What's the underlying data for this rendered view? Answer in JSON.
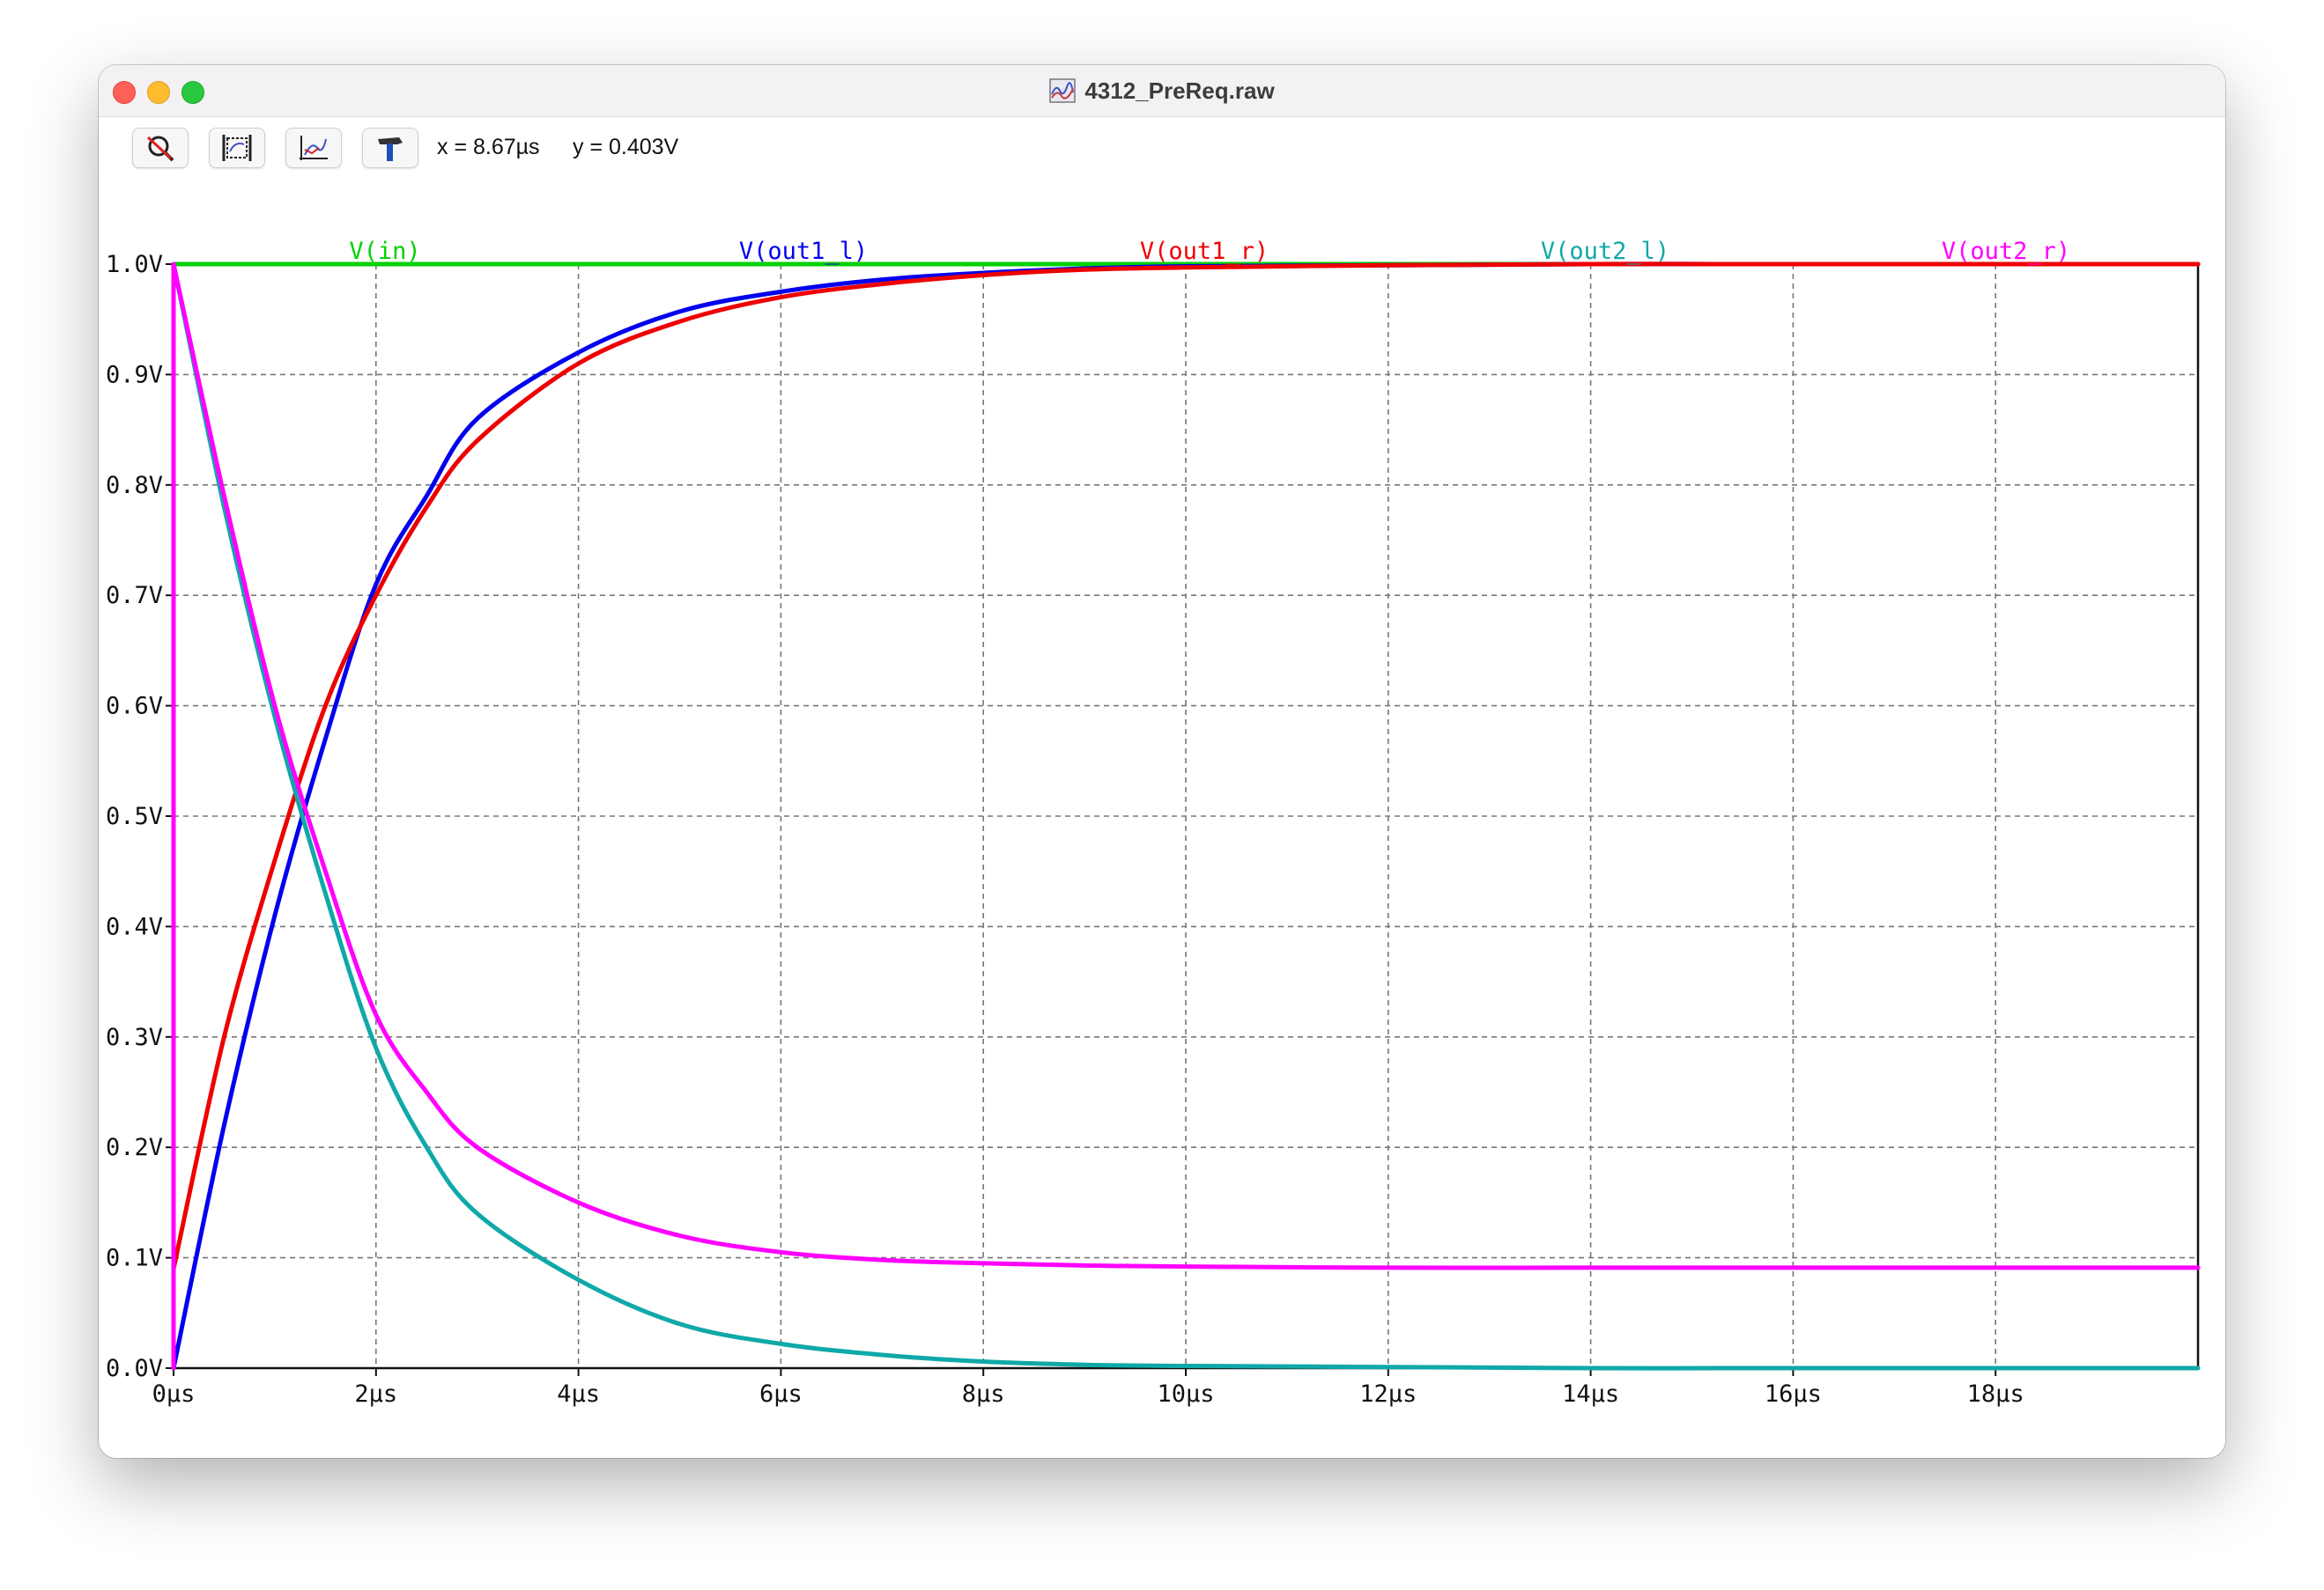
{
  "window": {
    "title": "4312_PreReq.raw",
    "title_icon": "waveform-document-icon"
  },
  "toolbar": {
    "buttons": [
      {
        "name": "autorange-icon"
      },
      {
        "name": "zoom-extents-icon"
      },
      {
        "name": "pan-icon"
      },
      {
        "name": "hammer-icon"
      }
    ],
    "cursor_x": "x = 8.67µs",
    "cursor_y": "y = 0.403V"
  },
  "chart_data": {
    "type": "line",
    "title": "",
    "xlabel": "",
    "ylabel": "",
    "xlim": [
      0,
      20
    ],
    "ylim": [
      0,
      1
    ],
    "grid": true,
    "x_ticks": [
      {
        "value": 0,
        "label": "0µs"
      },
      {
        "value": 2,
        "label": "2µs"
      },
      {
        "value": 4,
        "label": "4µs"
      },
      {
        "value": 6,
        "label": "6µs"
      },
      {
        "value": 8,
        "label": "8µs"
      },
      {
        "value": 10,
        "label": "10µs"
      },
      {
        "value": 12,
        "label": "12µs"
      },
      {
        "value": 14,
        "label": "14µs"
      },
      {
        "value": 16,
        "label": "16µs"
      },
      {
        "value": 18,
        "label": "18µs"
      }
    ],
    "y_ticks": [
      {
        "value": 0.0,
        "label": "0.0V"
      },
      {
        "value": 0.1,
        "label": "0.1V"
      },
      {
        "value": 0.2,
        "label": "0.2V"
      },
      {
        "value": 0.3,
        "label": "0.3V"
      },
      {
        "value": 0.4,
        "label": "0.4V"
      },
      {
        "value": 0.5,
        "label": "0.5V"
      },
      {
        "value": 0.6,
        "label": "0.6V"
      },
      {
        "value": 0.7,
        "label": "0.7V"
      },
      {
        "value": 0.8,
        "label": "0.8V"
      },
      {
        "value": 0.9,
        "label": "0.9V"
      },
      {
        "value": 1.0,
        "label": "1.0V"
      }
    ],
    "series": [
      {
        "name": "V(in)",
        "color": "#00d000",
        "x": [
          0,
          0,
          20
        ],
        "y": [
          0,
          1.0,
          1.0
        ]
      },
      {
        "name": "V(out1_l)",
        "color": "#0000ee",
        "x": [
          0,
          0.5,
          1,
          1.5,
          2,
          2.5,
          3,
          4,
          5,
          6,
          7,
          8,
          9,
          10,
          12,
          14,
          16,
          18,
          20
        ],
        "y": [
          0,
          0.22,
          0.41,
          0.57,
          0.71,
          0.79,
          0.86,
          0.92,
          0.957,
          0.975,
          0.986,
          0.992,
          0.996,
          0.998,
          0.999,
          1.0,
          1.0,
          1.0,
          1.0
        ]
      },
      {
        "name": "V(out1_r)",
        "color": "#ee0000",
        "x": [
          0,
          0.5,
          1,
          1.5,
          2,
          2.5,
          3,
          4,
          5,
          6,
          7,
          8,
          9,
          10,
          12,
          14,
          16,
          18,
          20
        ],
        "y": [
          0.09,
          0.3,
          0.46,
          0.6,
          0.7,
          0.78,
          0.84,
          0.91,
          0.948,
          0.97,
          0.982,
          0.99,
          0.995,
          0.997,
          0.999,
          1.0,
          1.0,
          1.0,
          1.0
        ]
      },
      {
        "name": "V(out2_l)",
        "color": "#10a8a8",
        "x": [
          0,
          0.5,
          1,
          1.5,
          2,
          2.5,
          3,
          4,
          5,
          6,
          7,
          8,
          9,
          10,
          12,
          14,
          16,
          18,
          20
        ],
        "y": [
          1.0,
          0.78,
          0.59,
          0.43,
          0.29,
          0.2,
          0.14,
          0.08,
          0.04,
          0.022,
          0.012,
          0.006,
          0.003,
          0.002,
          0.001,
          0.0,
          0.0,
          0.0,
          0.0
        ]
      },
      {
        "name": "V(out2_r)",
        "color": "#ff00ff",
        "x": [
          0,
          0,
          0.5,
          1,
          1.5,
          2,
          2.5,
          3,
          4,
          5,
          6,
          7,
          8,
          9,
          10,
          12,
          14,
          16,
          18,
          20
        ],
        "y": [
          0,
          1.0,
          0.79,
          0.6,
          0.45,
          0.32,
          0.25,
          0.2,
          0.15,
          0.12,
          0.105,
          0.098,
          0.095,
          0.093,
          0.092,
          0.091,
          0.091,
          0.091,
          0.091,
          0.091
        ]
      }
    ]
  }
}
